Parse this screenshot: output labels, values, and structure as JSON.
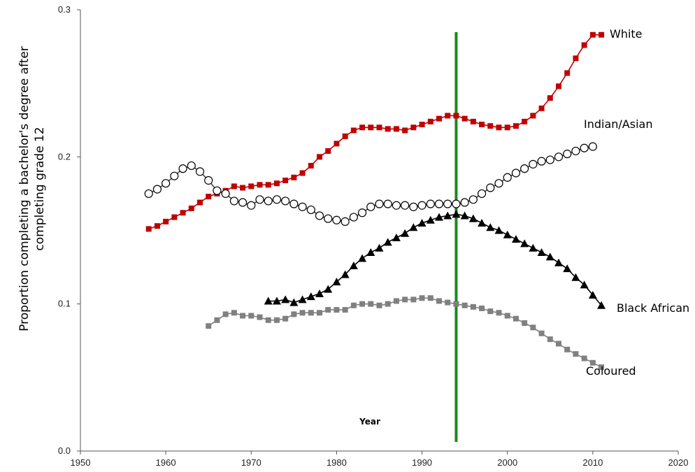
{
  "chart_data": {
    "type": "line",
    "xlabel": "Year",
    "ylabel_lines": [
      "Proportion completing a bachelor's degree after",
      "completing grade 12"
    ],
    "xlim": [
      1950,
      2020
    ],
    "ylim": [
      0.0,
      0.3
    ],
    "x_ticks": [
      "1950",
      "1960",
      "1970",
      "1980",
      "1990",
      "2000",
      "2010",
      "2020"
    ],
    "y_ticks": [
      "0.0",
      "0.1",
      "0.2",
      "0.3"
    ],
    "grid": false,
    "vertical_line": {
      "x": 1994,
      "color": "#1a8a1a"
    },
    "series": [
      {
        "name": "White",
        "color": "#c00000",
        "marker": "square",
        "x": [
          1958,
          1959,
          1960,
          1961,
          1962,
          1963,
          1964,
          1965,
          1966,
          1967,
          1968,
          1969,
          1970,
          1971,
          1972,
          1973,
          1974,
          1975,
          1976,
          1977,
          1978,
          1979,
          1980,
          1981,
          1982,
          1983,
          1984,
          1985,
          1986,
          1987,
          1988,
          1989,
          1990,
          1991,
          1992,
          1993,
          1994,
          1995,
          1996,
          1997,
          1998,
          1999,
          2000,
          2001,
          2002,
          2003,
          2004,
          2005,
          2006,
          2007,
          2008,
          2009,
          2010,
          2011
        ],
        "values": [
          0.151,
          0.153,
          0.156,
          0.159,
          0.162,
          0.165,
          0.169,
          0.173,
          0.175,
          0.177,
          0.18,
          0.179,
          0.18,
          0.181,
          0.181,
          0.182,
          0.184,
          0.186,
          0.189,
          0.194,
          0.2,
          0.204,
          0.209,
          0.214,
          0.218,
          0.22,
          0.22,
          0.22,
          0.219,
          0.219,
          0.218,
          0.22,
          0.222,
          0.224,
          0.226,
          0.228,
          0.228,
          0.226,
          0.224,
          0.222,
          0.221,
          0.22,
          0.22,
          0.221,
          0.224,
          0.228,
          0.233,
          0.24,
          0.248,
          0.257,
          0.267,
          0.276,
          0.283,
          0.283
        ]
      },
      {
        "name": "Indian/Asian",
        "color": "#000000",
        "marker": "circle-open",
        "x": [
          1958,
          1959,
          1960,
          1961,
          1962,
          1963,
          1964,
          1965,
          1966,
          1967,
          1968,
          1969,
          1970,
          1971,
          1972,
          1973,
          1974,
          1975,
          1976,
          1977,
          1978,
          1979,
          1980,
          1981,
          1982,
          1983,
          1984,
          1985,
          1986,
          1987,
          1988,
          1989,
          1990,
          1991,
          1992,
          1993,
          1994,
          1995,
          1996,
          1997,
          1998,
          1999,
          2000,
          2001,
          2002,
          2003,
          2004,
          2005,
          2006,
          2007,
          2008,
          2009,
          2010
        ],
        "values": [
          0.175,
          0.178,
          0.182,
          0.187,
          0.192,
          0.194,
          0.19,
          0.184,
          0.177,
          0.175,
          0.17,
          0.169,
          0.167,
          0.171,
          0.17,
          0.171,
          0.17,
          0.168,
          0.166,
          0.164,
          0.16,
          0.158,
          0.157,
          0.156,
          0.159,
          0.162,
          0.166,
          0.168,
          0.168,
          0.167,
          0.167,
          0.166,
          0.167,
          0.168,
          0.168,
          0.168,
          0.168,
          0.169,
          0.171,
          0.175,
          0.179,
          0.182,
          0.186,
          0.189,
          0.192,
          0.195,
          0.197,
          0.198,
          0.2,
          0.202,
          0.204,
          0.206,
          0.207
        ]
      },
      {
        "name": "Black African",
        "color": "#000000",
        "marker": "triangle",
        "x": [
          1972,
          1973,
          1974,
          1975,
          1976,
          1977,
          1978,
          1979,
          1980,
          1981,
          1982,
          1983,
          1984,
          1985,
          1986,
          1987,
          1988,
          1989,
          1990,
          1991,
          1992,
          1993,
          1994,
          1995,
          1996,
          1997,
          1998,
          1999,
          2000,
          2001,
          2002,
          2003,
          2004,
          2005,
          2006,
          2007,
          2008,
          2009,
          2010,
          2011
        ],
        "values": [
          0.102,
          0.102,
          0.103,
          0.101,
          0.103,
          0.105,
          0.107,
          0.11,
          0.115,
          0.12,
          0.126,
          0.131,
          0.135,
          0.138,
          0.142,
          0.145,
          0.148,
          0.152,
          0.155,
          0.157,
          0.159,
          0.16,
          0.161,
          0.16,
          0.158,
          0.155,
          0.152,
          0.15,
          0.147,
          0.144,
          0.141,
          0.138,
          0.135,
          0.132,
          0.128,
          0.124,
          0.118,
          0.113,
          0.106,
          0.099
        ]
      },
      {
        "name": "Coloured",
        "color": "#808080",
        "marker": "square",
        "x": [
          1965,
          1966,
          1967,
          1968,
          1969,
          1970,
          1971,
          1972,
          1973,
          1974,
          1975,
          1976,
          1977,
          1978,
          1979,
          1980,
          1981,
          1982,
          1983,
          1984,
          1985,
          1986,
          1987,
          1988,
          1989,
          1990,
          1991,
          1992,
          1993,
          1994,
          1995,
          1996,
          1997,
          1998,
          1999,
          2000,
          2001,
          2002,
          2003,
          2004,
          2005,
          2006,
          2007,
          2008,
          2009,
          2010,
          2011
        ],
        "values": [
          0.085,
          0.089,
          0.093,
          0.094,
          0.092,
          0.092,
          0.091,
          0.089,
          0.089,
          0.09,
          0.093,
          0.094,
          0.094,
          0.094,
          0.096,
          0.096,
          0.096,
          0.099,
          0.1,
          0.1,
          0.099,
          0.1,
          0.102,
          0.103,
          0.103,
          0.104,
          0.104,
          0.102,
          0.101,
          0.1,
          0.099,
          0.098,
          0.097,
          0.095,
          0.094,
          0.092,
          0.09,
          0.087,
          0.084,
          0.08,
          0.076,
          0.073,
          0.069,
          0.066,
          0.063,
          0.06,
          0.057
        ]
      }
    ]
  }
}
